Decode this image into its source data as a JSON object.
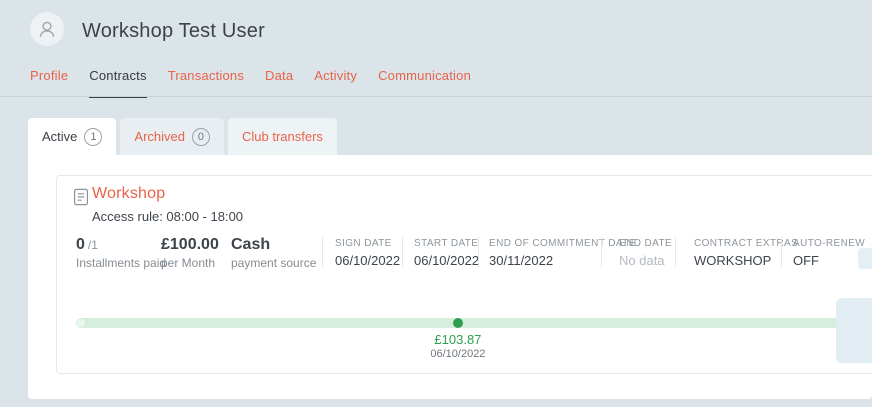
{
  "header": {
    "title": "Workshop Test User",
    "nav": [
      {
        "label": "Profile"
      },
      {
        "label": "Contracts"
      },
      {
        "label": "Transactions"
      },
      {
        "label": "Data"
      },
      {
        "label": "Activity"
      },
      {
        "label": "Communication"
      }
    ]
  },
  "tabs": [
    {
      "label": "Active",
      "badge": "1"
    },
    {
      "label": "Archived",
      "badge": "0"
    },
    {
      "label": "Club transfers"
    }
  ],
  "contract": {
    "name": "Workshop",
    "access_rule": "Access rule: 08:00 - 18:00",
    "stats": [
      {
        "value": "0",
        "suffix": "/1",
        "label": "Installments paid"
      },
      {
        "value": "£100.00",
        "suffix": "",
        "label": "per Month"
      },
      {
        "value": "Cash",
        "suffix": "",
        "label": "payment source"
      }
    ],
    "fields": [
      {
        "label": "SIGN DATE",
        "value": "06/10/2022"
      },
      {
        "label": "START DATE",
        "value": "06/10/2022"
      },
      {
        "label": "END OF COMMITMENT DATE",
        "value": "30/11/2022"
      },
      {
        "label": "END DATE",
        "value": "No data"
      },
      {
        "label": "CONTRACT EXTRAS",
        "value": "WORKSHOP"
      },
      {
        "label": "AUTO-RENEW",
        "value": "OFF"
      }
    ],
    "progress": {
      "amount": "£103.87",
      "date": "06/10/2022",
      "position_pct": 49.6
    }
  },
  "colors": {
    "accent": "#ea6249",
    "green": "#2f9e50",
    "green-track": "#d5eedd",
    "page-bg": "#dbe4e9"
  }
}
